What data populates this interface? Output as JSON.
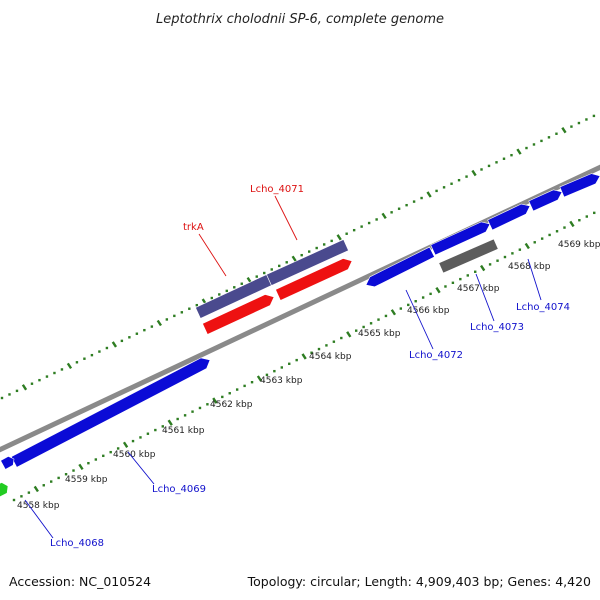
{
  "title": "Leptothrix cholodnii SP-6, complete genome",
  "footer": {
    "accession": "Accession: NC_010524",
    "summary": "Topology: circular; Length: 4,909,403 bp; Genes: 4,420"
  },
  "colors": {
    "dots": "#2e7d22",
    "backbone": "#8a8a8a",
    "cds_forward": "#0b0bd6",
    "rna_forward": "#4a4a8e",
    "rna_reverse": "#ee1111",
    "pseudo": "#5c5c5c",
    "partial": "#22cc22",
    "label_blue": "#1111cc",
    "label_red": "#dd1111"
  },
  "ticks": [
    {
      "label": "4558 kbp"
    },
    {
      "label": "4559 kbp"
    },
    {
      "label": "4560 kbp"
    },
    {
      "label": "4561 kbp"
    },
    {
      "label": "4562 kbp"
    },
    {
      "label": "4563 kbp"
    },
    {
      "label": "4564 kbp"
    },
    {
      "label": "4565 kbp"
    },
    {
      "label": "4566 kbp"
    },
    {
      "label": "4567 kbp"
    },
    {
      "label": "4568 kbp"
    },
    {
      "label": "4569 kbp"
    }
  ],
  "gene_labels": [
    {
      "name": "Lcho_4068",
      "color": "label_blue"
    },
    {
      "name": "Lcho_4069",
      "color": "label_blue"
    },
    {
      "name": "Lcho_4071",
      "color": "label_red"
    },
    {
      "name": "trkA",
      "color": "label_red"
    },
    {
      "name": "Lcho_4072",
      "color": "label_blue"
    },
    {
      "name": "Lcho_4073",
      "color": "label_blue"
    },
    {
      "name": "Lcho_4074",
      "color": "label_blue"
    }
  ]
}
